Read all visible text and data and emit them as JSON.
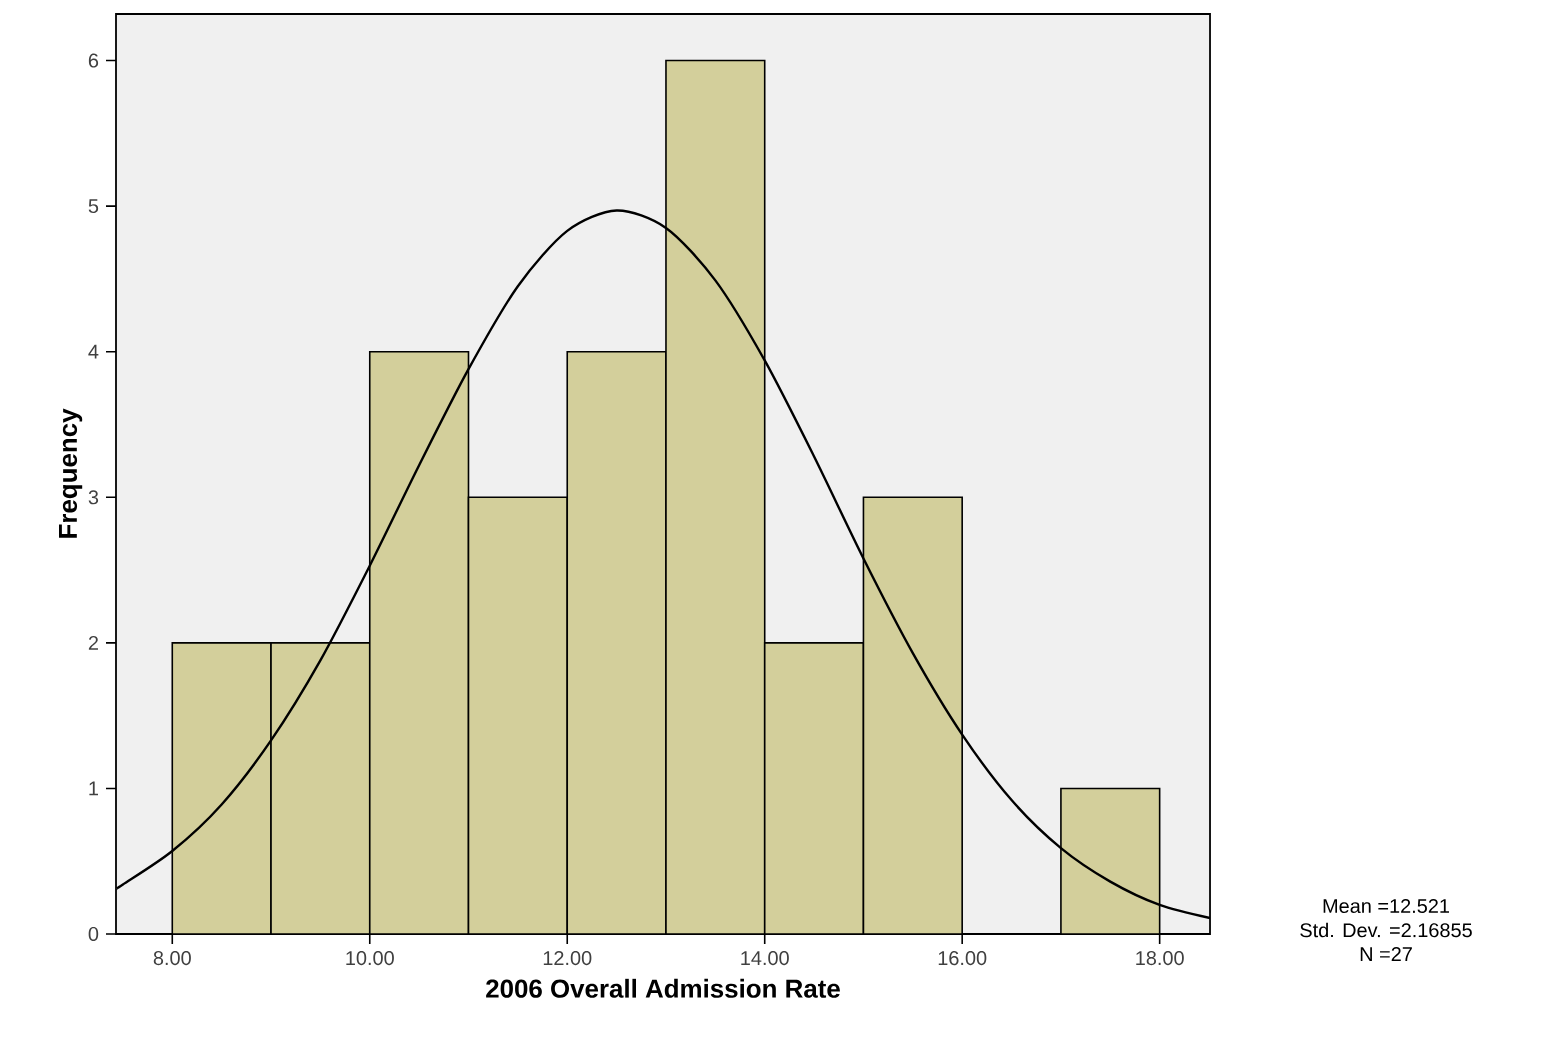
{
  "chart_data": {
    "type": "histogram",
    "xlabel": "2006 Overall Admission Rate",
    "ylabel": "Frequency",
    "bins": [
      8,
      9,
      10,
      11,
      12,
      13,
      14,
      15,
      16,
      17,
      18
    ],
    "values": [
      2,
      2,
      4,
      3,
      4,
      6,
      2,
      3,
      0,
      1
    ],
    "color": "#d3cf9b",
    "series": [
      {
        "type": "line",
        "color": "#000000",
        "x": [
          7.43,
          7.5,
          8,
          8.5,
          9,
          9.5,
          10,
          10.5,
          11,
          11.5,
          12,
          12.5,
          13,
          13.5,
          14,
          14.5,
          15,
          15.5,
          16,
          16.5,
          17,
          17.5,
          18,
          18.51
        ],
        "values": [
          0.31,
          0.34,
          0.57,
          0.89,
          1.33,
          1.88,
          2.53,
          3.22,
          3.88,
          4.45,
          4.83,
          4.97,
          4.85,
          4.49,
          3.94,
          3.28,
          2.58,
          1.93,
          1.37,
          0.92,
          0.59,
          0.36,
          0.2,
          0.11
        ]
      }
    ],
    "xlim": [
      7.43,
      18.51
    ],
    "ylim": [
      0,
      6.32
    ],
    "xticks": [
      {
        "value": 8,
        "label": "8.00"
      },
      {
        "value": 10,
        "label": "10.00"
      },
      {
        "value": 12,
        "label": "12.00"
      },
      {
        "value": 14,
        "label": "14.00"
      },
      {
        "value": 16,
        "label": "16.00"
      },
      {
        "value": 18,
        "label": "18.00"
      }
    ],
    "yticks": [
      0,
      1,
      2,
      3,
      4,
      5,
      6
    ],
    "grid": false,
    "marker": "none",
    "line_style": "solid",
    "annotations": [
      "Mean =12.521",
      "Std. Dev. =2.16855",
      "N =27"
    ]
  }
}
